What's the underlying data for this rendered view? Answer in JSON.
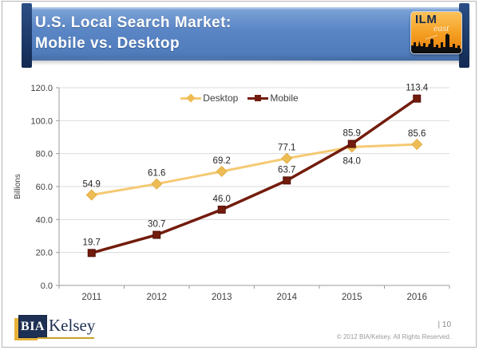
{
  "banner": {
    "title_line1": "U.S. Local Search Market:",
    "title_line2": "Mobile vs. Desktop",
    "accent_blue": "#5B86C6",
    "accent_navy": "#1D3A6B"
  },
  "ilm_logo": {
    "text": "ILM",
    "suffix": "east",
    "orange": "#F49D20"
  },
  "footer": {
    "brand_bia": "BIA",
    "brand_kelsey": "Kelsey",
    "gold": "#E6B23A",
    "page_number": "| 10",
    "copyright": "© 2012 BIA/Kelsey. All Rights Reserved."
  },
  "chart_data": {
    "type": "line",
    "x": [
      "2011",
      "2012",
      "2013",
      "2014",
      "2015",
      "2016"
    ],
    "series": [
      {
        "name": "Desktop",
        "color": "#F5C973",
        "marker": "diamond",
        "marker_fill": "#EEBC55",
        "marker_edge": "#E2AE45",
        "values": [
          54.9,
          61.6,
          69.2,
          77.1,
          84.0,
          85.6
        ],
        "label_positions": [
          "above",
          "above",
          "above",
          "above",
          "below",
          "above"
        ]
      },
      {
        "name": "Mobile",
        "color": "#731C0D",
        "marker": "square",
        "marker_fill": "#731C0D",
        "marker_edge": "#4F1108",
        "values": [
          19.7,
          30.7,
          46.0,
          63.7,
          85.9,
          113.4
        ],
        "label_positions": [
          "above",
          "above",
          "above",
          "above",
          "above",
          "above"
        ]
      }
    ],
    "title": "",
    "xlabel": "",
    "ylabel": "Billions",
    "ylim": [
      0,
      120
    ],
    "ytick_step": 20,
    "ytick_format": "one_decimal",
    "grid": true,
    "legend_position": "top-center"
  }
}
